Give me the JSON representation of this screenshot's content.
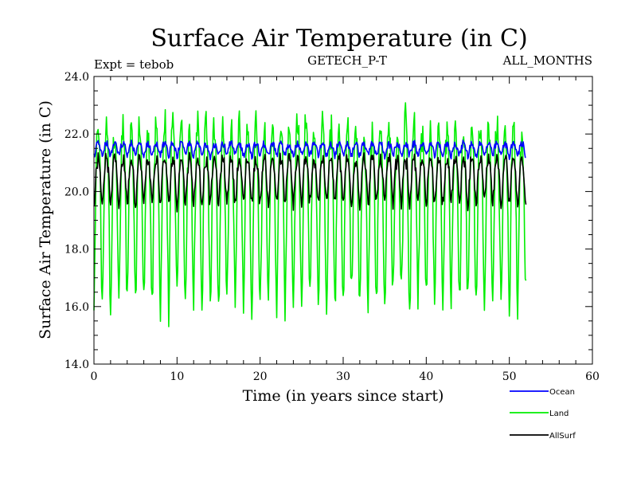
{
  "chart_data": {
    "type": "line",
    "title": "Surface Air Temperature (in C)",
    "subtitle_left": "Expt = tebob",
    "subtitle_center": "GETECH_P-T",
    "subtitle_right": "ALL_MONTHS",
    "xlabel": "Time (in years since start)",
    "ylabel": "Surface Air Temperature (in C)",
    "xlim": [
      0,
      60
    ],
    "ylim": [
      14.0,
      24.0
    ],
    "xticks": [
      0,
      10,
      20,
      30,
      40,
      50,
      60
    ],
    "xtick_labels": [
      "0",
      "10",
      "20",
      "30",
      "40",
      "50",
      "60"
    ],
    "yticks": [
      14,
      16,
      18,
      20,
      22,
      24
    ],
    "ytick_labels": [
      "14.0",
      "16.0",
      "18.0",
      "20.0",
      "22.0",
      "24.0"
    ],
    "n_years": 52,
    "samples_per_year": 12,
    "series": [
      {
        "name": "Ocean",
        "color": "#0000ff",
        "mean": 21.45,
        "amplitude": 0.2,
        "phase": 0.25,
        "noise": 0.12
      },
      {
        "name": "Land",
        "color": "#00ee00",
        "mean": 19.2,
        "amplitude": 3.0,
        "phase": 0.25,
        "noise": 0.5
      },
      {
        "name": "AllSurf",
        "color": "#000000",
        "mean": 20.35,
        "amplitude": 0.75,
        "phase": 0.25,
        "noise": 0.2
      }
    ]
  }
}
